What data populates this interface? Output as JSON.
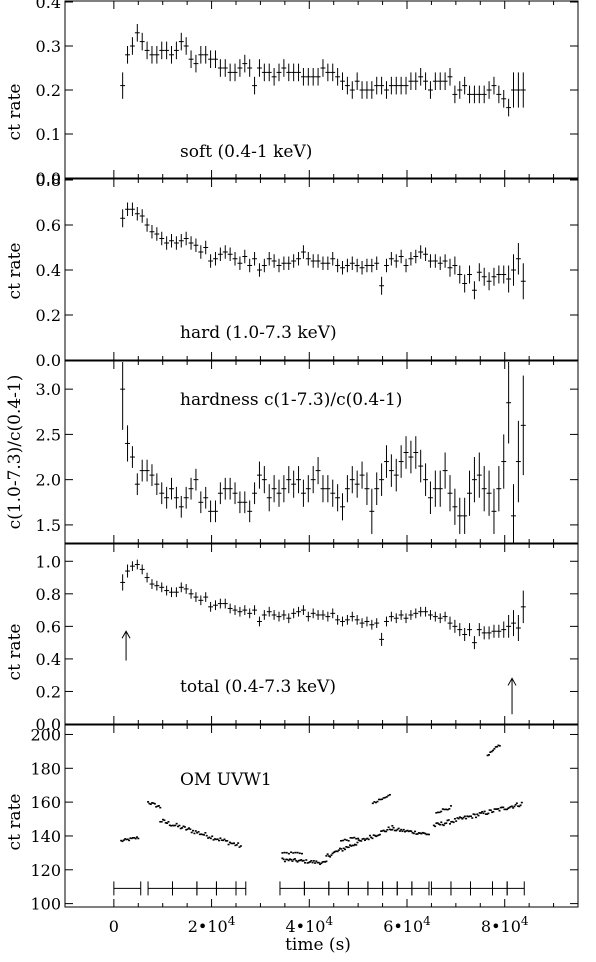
{
  "figure": {
    "xlabel": "time (s)",
    "xlim": [
      -10000,
      95000
    ],
    "x_ticks": [
      {
        "value": 0,
        "mantissa": "0",
        "exponent": ""
      },
      {
        "value": 20000,
        "mantissa": "2•10",
        "exponent": "4"
      },
      {
        "value": 40000,
        "mantissa": "4•10",
        "exponent": "4"
      },
      {
        "value": 60000,
        "mantissa": "6•10",
        "exponent": "4"
      },
      {
        "value": 80000,
        "mantissa": "8•10",
        "exponent": "4"
      }
    ]
  },
  "chart_data": [
    {
      "type": "scatter",
      "panel": "soft",
      "label": "soft (0.4-1 keV)",
      "ylabel": "ct rate",
      "ylim": [
        0,
        0.4
      ],
      "y_ticks": [
        "0.0",
        "0.1",
        "0.2",
        "0.3",
        "0.4"
      ],
      "x": [
        1800,
        2800,
        3800,
        4800,
        5800,
        6800,
        7800,
        8800,
        9800,
        10800,
        11800,
        12800,
        13800,
        14800,
        15800,
        16800,
        17800,
        18800,
        19800,
        20800,
        21800,
        22800,
        23800,
        24800,
        25800,
        26800,
        27800,
        28800,
        29800,
        30800,
        31800,
        32800,
        33800,
        34800,
        35800,
        36800,
        37800,
        38800,
        39800,
        40800,
        41800,
        42800,
        43800,
        44800,
        45800,
        46800,
        47800,
        48800,
        49800,
        50800,
        51800,
        52800,
        53800,
        54800,
        55800,
        56800,
        57800,
        58800,
        59800,
        60800,
        61800,
        62800,
        63800,
        64800,
        65800,
        66800,
        67800,
        68800,
        69800,
        70800,
        71800,
        72800,
        73800,
        74800,
        75800,
        76800,
        77800,
        78800,
        79800,
        80800,
        81800,
        82800,
        83800
      ],
      "y": [
        0.21,
        0.28,
        0.3,
        0.33,
        0.31,
        0.29,
        0.28,
        0.28,
        0.29,
        0.29,
        0.28,
        0.29,
        0.31,
        0.3,
        0.27,
        0.26,
        0.28,
        0.28,
        0.27,
        0.27,
        0.25,
        0.25,
        0.24,
        0.24,
        0.25,
        0.26,
        0.25,
        0.21,
        0.25,
        0.24,
        0.24,
        0.23,
        0.24,
        0.25,
        0.24,
        0.24,
        0.24,
        0.23,
        0.23,
        0.23,
        0.23,
        0.25,
        0.24,
        0.24,
        0.23,
        0.22,
        0.21,
        0.2,
        0.22,
        0.2,
        0.2,
        0.2,
        0.21,
        0.21,
        0.2,
        0.21,
        0.21,
        0.21,
        0.21,
        0.22,
        0.22,
        0.23,
        0.22,
        0.2,
        0.22,
        0.22,
        0.22,
        0.23,
        0.19,
        0.2,
        0.21,
        0.19,
        0.19,
        0.19,
        0.19,
        0.2,
        0.21,
        0.19,
        0.18,
        0.16,
        0.2,
        0.2,
        0.2
      ],
      "yerr": [
        0.03,
        0.02,
        0.02,
        0.02,
        0.02,
        0.02,
        0.02,
        0.02,
        0.02,
        0.02,
        0.02,
        0.02,
        0.02,
        0.02,
        0.02,
        0.02,
        0.02,
        0.02,
        0.02,
        0.02,
        0.02,
        0.02,
        0.02,
        0.02,
        0.02,
        0.02,
        0.02,
        0.02,
        0.02,
        0.02,
        0.02,
        0.02,
        0.02,
        0.02,
        0.02,
        0.02,
        0.02,
        0.02,
        0.02,
        0.02,
        0.02,
        0.02,
        0.02,
        0.02,
        0.02,
        0.02,
        0.02,
        0.02,
        0.02,
        0.02,
        0.02,
        0.02,
        0.02,
        0.02,
        0.02,
        0.02,
        0.02,
        0.02,
        0.02,
        0.02,
        0.02,
        0.02,
        0.02,
        0.02,
        0.02,
        0.02,
        0.02,
        0.02,
        0.02,
        0.02,
        0.02,
        0.02,
        0.02,
        0.02,
        0.02,
        0.02,
        0.02,
        0.02,
        0.02,
        0.02,
        0.04,
        0.04,
        0.04
      ],
      "xerr": 500
    },
    {
      "type": "scatter",
      "panel": "hard",
      "label": "hard (1.0-7.3 keV)",
      "ylabel": "ct rate",
      "ylim": [
        0,
        0.8
      ],
      "y_ticks": [
        "0.0",
        "0.2",
        "0.4",
        "0.6",
        "0.8"
      ],
      "x": [
        1800,
        2800,
        3800,
        4800,
        5800,
        6800,
        7800,
        8800,
        9800,
        10800,
        11800,
        12800,
        13800,
        14800,
        15800,
        16800,
        17800,
        18800,
        19800,
        20800,
        21800,
        22800,
        23800,
        24800,
        25800,
        26800,
        27800,
        28800,
        29800,
        30800,
        31800,
        32800,
        33800,
        34800,
        35800,
        36800,
        37800,
        38800,
        39800,
        40800,
        41800,
        42800,
        43800,
        44800,
        45800,
        46800,
        47800,
        48800,
        49800,
        50800,
        51800,
        52800,
        53800,
        54800,
        55800,
        56800,
        57800,
        58800,
        59800,
        60800,
        61800,
        62800,
        63800,
        64800,
        65800,
        66800,
        67800,
        68800,
        69800,
        70800,
        71800,
        72800,
        73800,
        74800,
        75800,
        76800,
        77800,
        78800,
        79800,
        80800,
        81800,
        82800,
        83800
      ],
      "y": [
        0.63,
        0.67,
        0.67,
        0.65,
        0.64,
        0.6,
        0.57,
        0.56,
        0.54,
        0.52,
        0.53,
        0.52,
        0.53,
        0.54,
        0.52,
        0.51,
        0.48,
        0.5,
        0.44,
        0.45,
        0.47,
        0.48,
        0.47,
        0.45,
        0.43,
        0.46,
        0.42,
        0.45,
        0.4,
        0.42,
        0.45,
        0.44,
        0.42,
        0.43,
        0.43,
        0.44,
        0.45,
        0.48,
        0.45,
        0.44,
        0.44,
        0.43,
        0.43,
        0.45,
        0.42,
        0.41,
        0.42,
        0.43,
        0.42,
        0.41,
        0.42,
        0.42,
        0.43,
        0.33,
        0.42,
        0.45,
        0.44,
        0.46,
        0.42,
        0.45,
        0.46,
        0.48,
        0.47,
        0.44,
        0.44,
        0.43,
        0.44,
        0.41,
        0.42,
        0.38,
        0.34,
        0.38,
        0.31,
        0.39,
        0.37,
        0.35,
        0.37,
        0.38,
        0.38,
        0.36,
        0.4,
        0.45,
        0.35
      ],
      "yerr": [
        0.04,
        0.03,
        0.03,
        0.03,
        0.03,
        0.03,
        0.03,
        0.03,
        0.03,
        0.03,
        0.03,
        0.03,
        0.03,
        0.03,
        0.03,
        0.03,
        0.03,
        0.03,
        0.03,
        0.03,
        0.03,
        0.03,
        0.03,
        0.03,
        0.03,
        0.03,
        0.03,
        0.03,
        0.03,
        0.03,
        0.03,
        0.03,
        0.03,
        0.03,
        0.03,
        0.03,
        0.03,
        0.03,
        0.03,
        0.03,
        0.03,
        0.03,
        0.03,
        0.03,
        0.03,
        0.03,
        0.03,
        0.03,
        0.03,
        0.03,
        0.03,
        0.03,
        0.03,
        0.04,
        0.03,
        0.03,
        0.03,
        0.03,
        0.03,
        0.03,
        0.03,
        0.03,
        0.03,
        0.03,
        0.03,
        0.03,
        0.03,
        0.04,
        0.04,
        0.04,
        0.04,
        0.04,
        0.04,
        0.04,
        0.04,
        0.04,
        0.04,
        0.04,
        0.04,
        0.06,
        0.07,
        0.07,
        0.08
      ],
      "xerr": 500
    },
    {
      "type": "scatter",
      "panel": "hardness",
      "label": "hardness c(1-7.3)/c(0.4-1)",
      "ylabel": "c(1.0-7.3)/c(0.4-1)",
      "ylim": [
        1.3,
        3.3
      ],
      "y_ticks": [
        "1.5",
        "2.0",
        "2.5",
        "3.0"
      ],
      "x": [
        1800,
        2800,
        3800,
        4800,
        5800,
        6800,
        7800,
        8800,
        9800,
        10800,
        11800,
        12800,
        13800,
        14800,
        15800,
        16800,
        17800,
        18800,
        19800,
        20800,
        21800,
        22800,
        23800,
        24800,
        25800,
        26800,
        27800,
        28800,
        29800,
        30800,
        31800,
        32800,
        33800,
        34800,
        35800,
        36800,
        37800,
        38800,
        39800,
        40800,
        41800,
        42800,
        43800,
        44800,
        45800,
        46800,
        47800,
        48800,
        49800,
        50800,
        51800,
        52800,
        53800,
        54800,
        55800,
        56800,
        57800,
        58800,
        59800,
        60800,
        61800,
        62800,
        63800,
        64800,
        65800,
        66800,
        67800,
        68800,
        69800,
        70800,
        71800,
        72800,
        73800,
        74800,
        75800,
        76800,
        77800,
        78800,
        79800,
        80800,
        81800,
        82800,
        83800
      ],
      "y": [
        3.0,
        2.4,
        2.25,
        1.95,
        2.1,
        2.1,
        2.05,
        1.95,
        1.85,
        1.8,
        1.9,
        1.8,
        1.7,
        1.8,
        1.9,
        2.0,
        1.75,
        1.8,
        1.65,
        1.65,
        1.85,
        1.9,
        1.9,
        1.85,
        1.75,
        1.75,
        1.65,
        1.85,
        2.05,
        2.0,
        1.8,
        1.9,
        1.85,
        1.9,
        2.0,
        1.95,
        2.0,
        1.85,
        1.9,
        2.0,
        2.1,
        1.9,
        1.9,
        1.85,
        1.8,
        1.7,
        1.9,
        2.0,
        1.95,
        2.05,
        1.9,
        1.65,
        1.9,
        2.0,
        2.2,
        2.1,
        2.05,
        2.2,
        2.3,
        2.25,
        2.3,
        2.15,
        2.0,
        1.8,
        1.9,
        1.9,
        2.1,
        1.85,
        1.7,
        1.6,
        1.6,
        1.85,
        2.0,
        2.05,
        1.9,
        1.85,
        1.65,
        1.9,
        2.2,
        2.85,
        1.6,
        2.2,
        2.6
      ],
      "yerr": [
        0.45,
        0.2,
        0.12,
        0.12,
        0.12,
        0.12,
        0.12,
        0.12,
        0.12,
        0.12,
        0.12,
        0.12,
        0.12,
        0.12,
        0.12,
        0.12,
        0.12,
        0.12,
        0.12,
        0.12,
        0.12,
        0.12,
        0.12,
        0.12,
        0.12,
        0.12,
        0.12,
        0.12,
        0.15,
        0.15,
        0.15,
        0.15,
        0.15,
        0.15,
        0.15,
        0.15,
        0.15,
        0.15,
        0.15,
        0.15,
        0.15,
        0.15,
        0.15,
        0.15,
        0.15,
        0.15,
        0.15,
        0.15,
        0.15,
        0.15,
        0.18,
        0.25,
        0.18,
        0.18,
        0.18,
        0.18,
        0.18,
        0.18,
        0.18,
        0.18,
        0.18,
        0.18,
        0.18,
        0.18,
        0.2,
        0.2,
        0.2,
        0.2,
        0.2,
        0.2,
        0.2,
        0.25,
        0.25,
        0.25,
        0.25,
        0.25,
        0.25,
        0.25,
        0.3,
        0.45,
        0.35,
        0.45,
        0.55
      ],
      "xerr": 500
    },
    {
      "type": "scatter",
      "panel": "total",
      "label": "total (0.4-7.3 keV)",
      "ylabel": "ct rate",
      "ylim": [
        0,
        1.1
      ],
      "y_ticks": [
        "0.0",
        "0.2",
        "0.4",
        "0.6",
        "0.8",
        "1.0"
      ],
      "x": [
        1800,
        2800,
        3800,
        4800,
        5800,
        6800,
        7800,
        8800,
        9800,
        10800,
        11800,
        12800,
        13800,
        14800,
        15800,
        16800,
        17800,
        18800,
        19800,
        20800,
        21800,
        22800,
        23800,
        24800,
        25800,
        26800,
        27800,
        28800,
        29800,
        30800,
        31800,
        32800,
        33800,
        34800,
        35800,
        36800,
        37800,
        38800,
        39800,
        40800,
        41800,
        42800,
        43800,
        44800,
        45800,
        46800,
        47800,
        48800,
        49800,
        50800,
        51800,
        52800,
        53800,
        54800,
        55800,
        56800,
        57800,
        58800,
        59800,
        60800,
        61800,
        62800,
        63800,
        64800,
        65800,
        66800,
        67800,
        68800,
        69800,
        70800,
        71800,
        72800,
        73800,
        74800,
        75800,
        76800,
        77800,
        78800,
        79800,
        80800,
        81800,
        82800,
        83800
      ],
      "y": [
        0.87,
        0.94,
        0.97,
        0.98,
        0.95,
        0.9,
        0.86,
        0.85,
        0.84,
        0.82,
        0.81,
        0.81,
        0.84,
        0.83,
        0.8,
        0.78,
        0.76,
        0.78,
        0.72,
        0.73,
        0.74,
        0.74,
        0.71,
        0.7,
        0.69,
        0.7,
        0.68,
        0.7,
        0.63,
        0.67,
        0.69,
        0.67,
        0.66,
        0.67,
        0.65,
        0.68,
        0.69,
        0.7,
        0.66,
        0.68,
        0.67,
        0.67,
        0.66,
        0.68,
        0.64,
        0.63,
        0.64,
        0.66,
        0.64,
        0.62,
        0.63,
        0.61,
        0.62,
        0.52,
        0.63,
        0.66,
        0.65,
        0.67,
        0.65,
        0.67,
        0.68,
        0.69,
        0.69,
        0.67,
        0.66,
        0.65,
        0.66,
        0.62,
        0.6,
        0.58,
        0.55,
        0.58,
        0.5,
        0.58,
        0.56,
        0.56,
        0.57,
        0.57,
        0.58,
        0.6,
        0.62,
        0.59,
        0.72
      ],
      "yerr": [
        0.05,
        0.04,
        0.03,
        0.03,
        0.03,
        0.03,
        0.03,
        0.03,
        0.03,
        0.03,
        0.03,
        0.03,
        0.03,
        0.03,
        0.03,
        0.03,
        0.03,
        0.03,
        0.03,
        0.03,
        0.03,
        0.03,
        0.03,
        0.03,
        0.03,
        0.03,
        0.03,
        0.03,
        0.03,
        0.03,
        0.03,
        0.03,
        0.03,
        0.03,
        0.03,
        0.03,
        0.03,
        0.03,
        0.03,
        0.03,
        0.03,
        0.03,
        0.03,
        0.03,
        0.03,
        0.03,
        0.03,
        0.03,
        0.03,
        0.03,
        0.03,
        0.03,
        0.03,
        0.04,
        0.03,
        0.03,
        0.03,
        0.03,
        0.03,
        0.03,
        0.03,
        0.03,
        0.03,
        0.03,
        0.03,
        0.03,
        0.03,
        0.04,
        0.04,
        0.04,
        0.04,
        0.04,
        0.04,
        0.04,
        0.04,
        0.04,
        0.04,
        0.04,
        0.05,
        0.07,
        0.08,
        0.08,
        0.1
      ],
      "xerr": 500,
      "arrows": [
        {
          "x": 2500,
          "y_tail": 0.39,
          "y_head": 0.57
        },
        {
          "x": 81500,
          "y_tail": 0.06,
          "y_head": 0.28
        }
      ]
    },
    {
      "type": "scatter",
      "panel": "om",
      "label": "OM UVW1",
      "ylabel": "ct rate",
      "ylim": [
        98,
        205
      ],
      "y_ticks": [
        "100",
        "120",
        "140",
        "160",
        "180",
        "200"
      ],
      "segments": [
        {
          "x_start": 1500,
          "x_end": 5000,
          "y_start": 137,
          "y_end": 139,
          "n": 14,
          "noise": 0.8
        },
        {
          "x_start": 7000,
          "x_end": 9500,
          "y_start": 160,
          "y_end": 157,
          "n": 10,
          "noise": 1.0
        },
        {
          "x_start": 9500,
          "x_end": 26000,
          "y_start": 149,
          "y_end": 134,
          "n": 60,
          "noise": 1.4
        },
        {
          "x_start": 34500,
          "x_end": 43500,
          "y_start": 126,
          "y_end": 124,
          "n": 36,
          "noise": 1.0
        },
        {
          "x_start": 43500,
          "x_end": 57000,
          "y_start": 128,
          "y_end": 145,
          "n": 54,
          "noise": 1.3
        },
        {
          "x_start": 57000,
          "x_end": 64500,
          "y_start": 144,
          "y_end": 141,
          "n": 30,
          "noise": 1.0
        },
        {
          "x_start": 65500,
          "x_end": 83500,
          "y_start": 146,
          "y_end": 159,
          "n": 72,
          "noise": 1.3
        },
        {
          "x_start": 34500,
          "x_end": 38500,
          "y_start": 130,
          "y_end": 130,
          "n": 10,
          "noise": 0.6
        },
        {
          "x_start": 46500,
          "x_end": 50000,
          "y_start": 137,
          "y_end": 139,
          "n": 10,
          "noise": 0.8
        },
        {
          "x_start": 53000,
          "x_end": 56500,
          "y_start": 159,
          "y_end": 164,
          "n": 12,
          "noise": 0.8
        },
        {
          "x_start": 66000,
          "x_end": 69000,
          "y_start": 154,
          "y_end": 157,
          "n": 10,
          "noise": 0.8
        },
        {
          "x_start": 76500,
          "x_end": 79000,
          "y_start": 187,
          "y_end": 194,
          "n": 10,
          "noise": 1.0
        }
      ],
      "exposure_markers": {
        "y": 109,
        "bars": [
          [
            0,
            5500
          ],
          [
            7000,
            12000
          ],
          [
            12000,
            17000
          ],
          [
            17000,
            21000
          ],
          [
            21000,
            25000
          ],
          [
            25000,
            27000
          ],
          [
            34000,
            39000
          ],
          [
            39000,
            44000
          ],
          [
            44000,
            48000
          ],
          [
            48000,
            52000
          ],
          [
            52000,
            55000
          ],
          [
            55000,
            58000
          ],
          [
            58000,
            61000
          ],
          [
            61000,
            64500
          ],
          [
            65000,
            69000
          ],
          [
            69000,
            73000
          ],
          [
            73000,
            77500
          ],
          [
            77500,
            80500
          ],
          [
            80500,
            84000
          ]
        ]
      }
    }
  ]
}
